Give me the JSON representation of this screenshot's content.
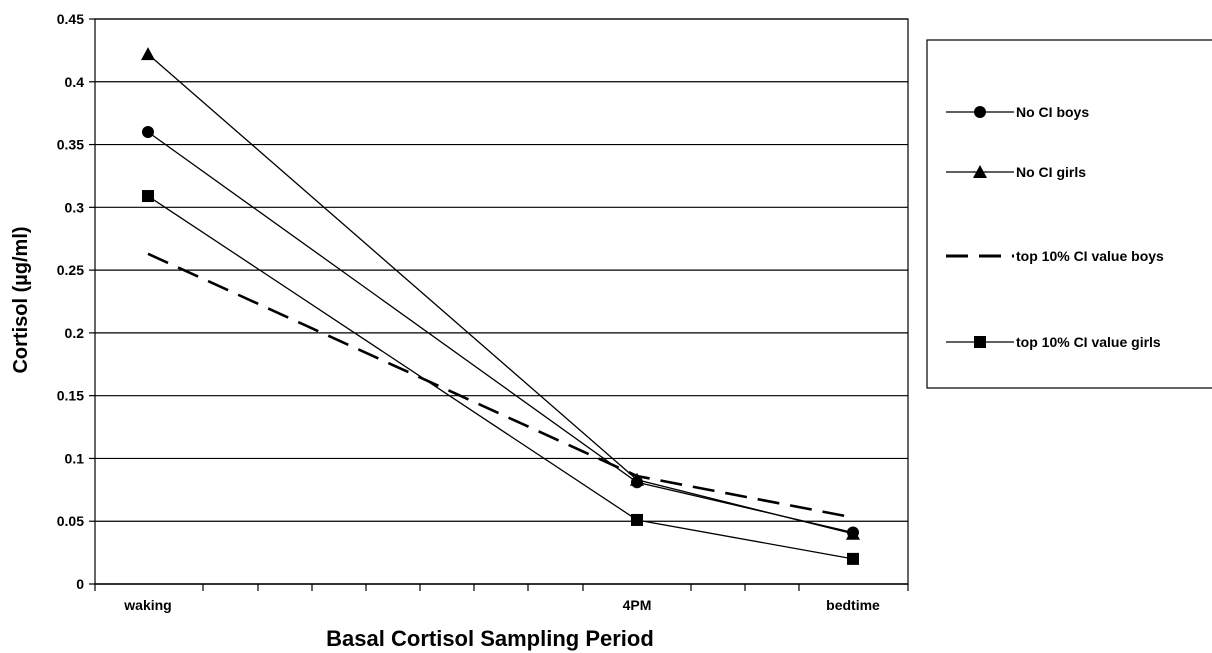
{
  "chart_data": {
    "type": "line",
    "title": "",
    "xlabel": "Basal Cortisol Sampling Period",
    "ylabel": "Cortisol (µg/ml)",
    "ylim": [
      0,
      0.45
    ],
    "yticks": [
      "0",
      "0.05",
      "0.1",
      "0.15",
      "0.2",
      "0.25",
      "0.3",
      "0.35",
      "0.4",
      "0.45"
    ],
    "categories": [
      "waking",
      "4PM",
      "bedtime"
    ],
    "grid": true,
    "legend_position": "right",
    "series": [
      {
        "name": "No CI boys",
        "values": [
          0.36,
          0.081,
          0.041
        ],
        "marker": "circle",
        "dash": false,
        "color": "#000000"
      },
      {
        "name": "No CI girls",
        "values": [
          0.422,
          0.083,
          0.04
        ],
        "marker": "triangle",
        "dash": false,
        "color": "#000000"
      },
      {
        "name": "top 10% CI value boys",
        "values": [
          0.263,
          0.086,
          0.053
        ],
        "marker": "none",
        "dash": true,
        "color": "#000000"
      },
      {
        "name": "top 10% CI value girls",
        "values": [
          0.309,
          0.051,
          0.02
        ],
        "marker": "square",
        "dash": false,
        "color": "#000000"
      }
    ]
  }
}
